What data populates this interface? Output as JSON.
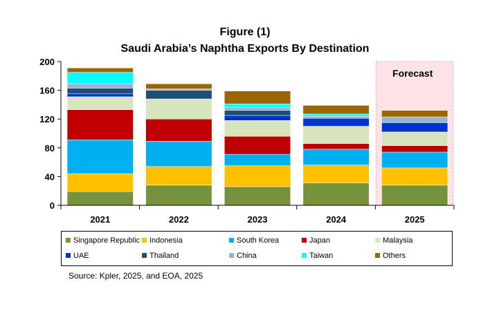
{
  "title_line1": "Figure (1)",
  "title_line2": "Saudi Arabia’s Naphtha Exports By Destination",
  "source": "Source: Kpler, 2025, and EOA, 2025",
  "forecast_label": "Forecast",
  "chart_data": {
    "type": "bar",
    "stacked": true,
    "categories": [
      "2021",
      "2022",
      "2023",
      "2024",
      "2025"
    ],
    "ylim": [
      0,
      200
    ],
    "yticks": [
      0,
      40,
      80,
      120,
      160,
      200
    ],
    "forecast_category": "2025",
    "series": [
      {
        "name": "Singapore Republic",
        "color": "#76923c",
        "values": [
          19,
          28,
          26,
          31,
          28
        ]
      },
      {
        "name": "Indonesia",
        "color": "#ffc000",
        "values": [
          25,
          26,
          29,
          25,
          24
        ]
      },
      {
        "name": "South Korea",
        "color": "#00b0f0",
        "values": [
          47,
          35,
          16,
          22,
          22
        ]
      },
      {
        "name": "Japan",
        "color": "#c00000",
        "values": [
          42,
          31,
          25,
          8,
          9
        ]
      },
      {
        "name": "Malaysia",
        "color": "#d7e4bc",
        "values": [
          18,
          28,
          22,
          24,
          19
        ]
      },
      {
        "name": "UAE",
        "color": "#0033cc",
        "values": [
          4,
          0,
          7,
          11,
          13
        ]
      },
      {
        "name": "Thailand",
        "color": "#1f4e79",
        "values": [
          8,
          12,
          7,
          0,
          0
        ]
      },
      {
        "name": "China",
        "color": "#95b3d7",
        "values": [
          6,
          2,
          4,
          3,
          8
        ]
      },
      {
        "name": "Taiwan",
        "color": "#00ffff",
        "values": [
          16,
          0,
          5,
          3,
          0
        ]
      },
      {
        "name": "Others",
        "color": "#9c6500",
        "values": [
          6,
          7,
          18,
          12,
          9
        ]
      }
    ],
    "legend_position": "bottom",
    "grid": false
  }
}
